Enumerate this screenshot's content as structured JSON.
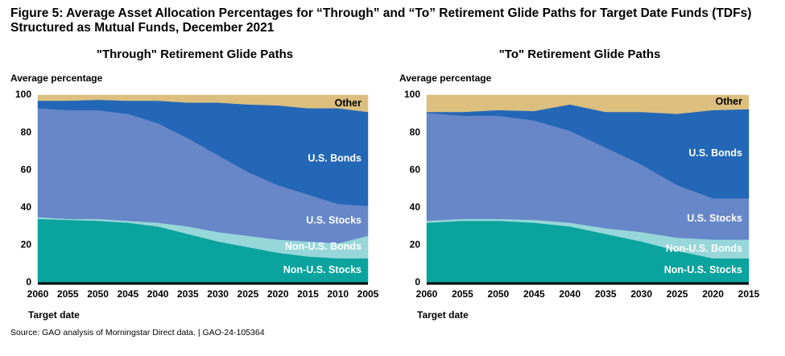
{
  "figure": {
    "title": "Figure 5: Average Asset Allocation Percentages for “Through” and “To” Retirement Glide Paths for Target Date Funds (TDFs) Structured as Mutual Funds, December 2021",
    "source": "Source: GAO analysis of Morningstar Direct data.  |  GAO-24-105364"
  },
  "chart_data": [
    {
      "type": "stacked_area",
      "title": "\"Through\" Retirement Glide Paths",
      "y_label": "Average percentage",
      "x_label": "Target date",
      "categories": [
        "2060",
        "2055",
        "2050",
        "2045",
        "2040",
        "2035",
        "2030",
        "2025",
        "2020",
        "2015",
        "2010",
        "2005"
      ],
      "ylim": [
        0,
        100
      ],
      "yticks": [
        0,
        20,
        40,
        60,
        80,
        100
      ],
      "series": [
        {
          "name": "Non-U.S. Stocks",
          "color": "#0aa39d",
          "label_color": "#ffffff",
          "values": [
            34,
            33.5,
            33,
            32,
            30,
            26,
            22,
            19,
            16,
            14,
            13,
            13
          ]
        },
        {
          "name": "Non-U.S. Bonds",
          "color": "#97d6d9",
          "label_color": "#ffffff",
          "values": [
            1,
            0.5,
            1,
            1,
            2,
            4,
            5,
            6,
            7,
            8,
            8,
            12
          ]
        },
        {
          "name": "U.S. Stocks",
          "color": "#6787c8",
          "label_color": "#ffffff",
          "values": [
            58,
            58,
            58,
            57,
            53,
            47,
            41,
            34,
            29,
            25,
            21,
            16
          ]
        },
        {
          "name": "U.S. Bonds",
          "color": "#2367b6",
          "label_color": "#ffffff",
          "values": [
            4,
            5,
            5.5,
            7,
            12,
            19,
            28,
            36,
            42.5,
            46,
            51,
            50
          ]
        },
        {
          "name": "Other",
          "color": "#dcbf7f",
          "label_color": "#000000",
          "values": [
            3,
            3,
            2.5,
            3,
            3,
            4,
            4,
            5,
            5.5,
            7,
            7,
            9
          ]
        }
      ]
    },
    {
      "type": "stacked_area",
      "title": "\"To\" Retirement Glide Paths",
      "y_label": "Average percentage",
      "x_label": "Target date",
      "categories": [
        "2060",
        "2055",
        "2050",
        "2045",
        "2040",
        "2035",
        "2030",
        "2025",
        "2020",
        "2015"
      ],
      "ylim": [
        0,
        100
      ],
      "yticks": [
        0,
        20,
        40,
        60,
        80,
        100
      ],
      "series": [
        {
          "name": "Non-U.S. Stocks",
          "color": "#0aa39d",
          "label_color": "#ffffff",
          "values": [
            32,
            33,
            33,
            32,
            30,
            26,
            22,
            17,
            13,
            13
          ]
        },
        {
          "name": "Non-U.S. Bonds",
          "color": "#97d6d9",
          "label_color": "#ffffff",
          "values": [
            1,
            1,
            1,
            1.5,
            2,
            3,
            5,
            7,
            10,
            10
          ]
        },
        {
          "name": "U.S. Stocks",
          "color": "#6787c8",
          "label_color": "#ffffff",
          "values": [
            57.5,
            55,
            55,
            53,
            49,
            43,
            36,
            28,
            22,
            22
          ]
        },
        {
          "name": "U.S. Bonds",
          "color": "#2367b6",
          "label_color": "#ffffff",
          "values": [
            0.5,
            2,
            3,
            5,
            14,
            19,
            28,
            38,
            47,
            47.5
          ]
        },
        {
          "name": "Other",
          "color": "#dcbf7f",
          "label_color": "#000000",
          "values": [
            9,
            9,
            8,
            8.5,
            5,
            9,
            9,
            10,
            8,
            7.5
          ]
        }
      ]
    }
  ]
}
